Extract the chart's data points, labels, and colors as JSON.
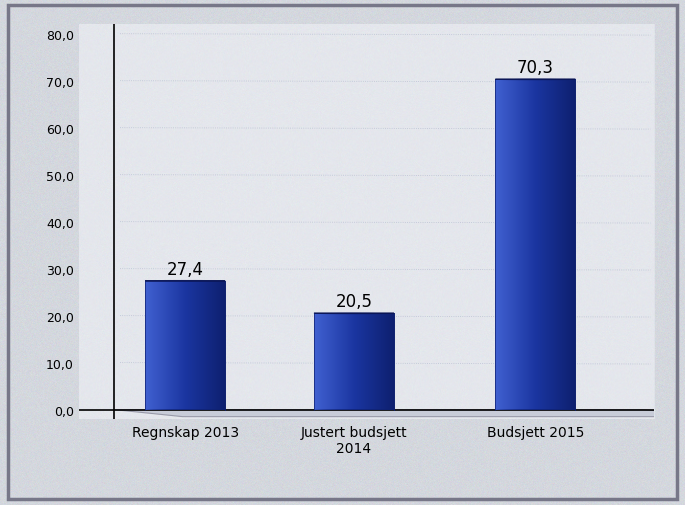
{
  "categories": [
    "Regnskap 2013",
    "Justert budsjett\n2014",
    "Budsjett 2015"
  ],
  "values": [
    27.4,
    20.5,
    70.3
  ],
  "value_labels": [
    "27,4",
    "20,5",
    "70,3"
  ],
  "bar_color_left": "#4060d0",
  "bar_color_center": "#1a35a0",
  "bar_color_right": "#0d1f6e",
  "bar_color_top_center": "#1a2f8a",
  "bar_color_top_edge": "#0a1555",
  "ylim": [
    0,
    80
  ],
  "yticks": [
    0.0,
    10.0,
    20.0,
    30.0,
    40.0,
    50.0,
    60.0,
    70.0,
    80.0
  ],
  "ytick_labels": [
    "0,0",
    "10,0",
    "20,0",
    "30,0",
    "40,0",
    "50,0",
    "60,0",
    "70,0",
    "80,0"
  ],
  "background_color": "#d4d9e2",
  "plot_bg_color": "#e2e6ee",
  "label_fontsize": 10,
  "tick_fontsize": 9,
  "value_fontsize": 12,
  "border_color": "#888888",
  "grid_color": "#b0b8cc",
  "floor_color": "#c8ccd8",
  "floor_edge_color": "#999aaa"
}
